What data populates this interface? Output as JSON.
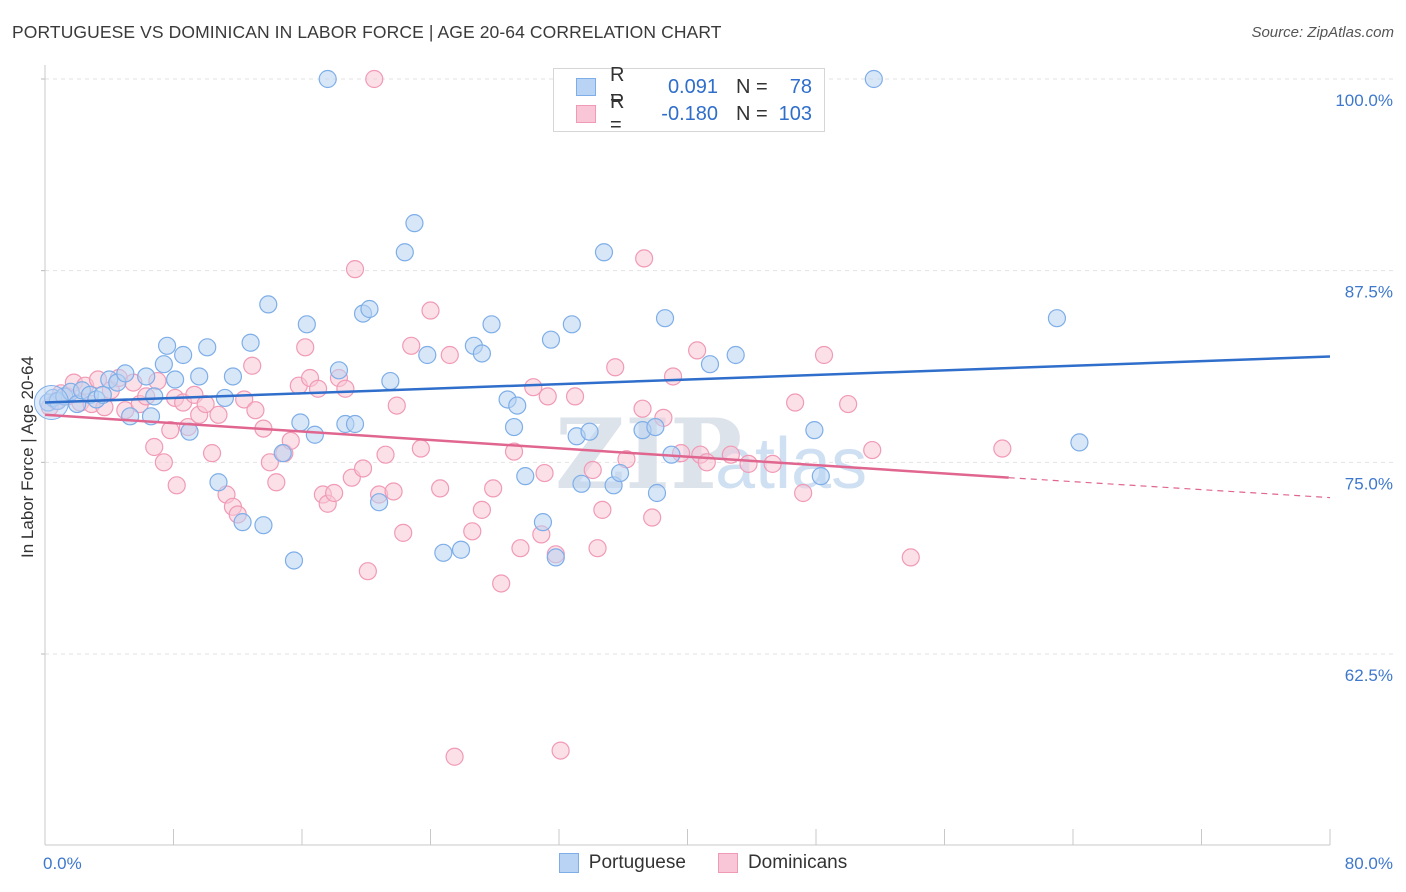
{
  "header": {
    "title": "PORTUGUESE VS DOMINICAN IN LABOR FORCE | AGE 20-64 CORRELATION CHART",
    "source": "Source: ZipAtlas.com"
  },
  "legend": {
    "r_label": "R =",
    "n_label": "N =",
    "entries": [
      {
        "name": "Portuguese",
        "r": "0.091",
        "n": "78",
        "color": "#7eaee8",
        "fill": "#b8d3f3",
        "line": "#2f6ecb"
      },
      {
        "name": "Dominicans",
        "r": "-0.180",
        "n": "103",
        "color": "#f19ab6",
        "fill": "#f8c6d6",
        "line": "#e0668f"
      }
    ]
  },
  "watermark": {
    "zip": "ZIP",
    "atlas": "atlas"
  },
  "chart_data": {
    "type": "scatter",
    "title": "PORTUGUESE VS DOMINICAN IN LABOR FORCE | AGE 20-64 CORRELATION CHART",
    "xlabel": "",
    "ylabel": "In Labor Force | Age 20-64",
    "xlim": [
      0,
      80
    ],
    "ylim": [
      52.5,
      102
    ],
    "x_tick_labels": [
      "0.0%",
      "80.0%"
    ],
    "y_ticks": [
      62.5,
      75.0,
      87.5,
      100.0
    ],
    "y_tick_labels": [
      "62.5%",
      "75.0%",
      "87.5%",
      "100.0%"
    ],
    "grid": true,
    "legend_position": "top-center",
    "series": [
      {
        "name": "Portuguese",
        "color": "#7eaee8",
        "trend": {
          "x": [
            0,
            80
          ],
          "y": [
            78.9,
            81.9
          ]
        },
        "points": [
          [
            0.2,
            78.9
          ],
          [
            0.5,
            79.2
          ],
          [
            0.8,
            79.0
          ],
          [
            1.2,
            79.3
          ],
          [
            1.6,
            79.6
          ],
          [
            2.0,
            78.8
          ],
          [
            2.3,
            79.7
          ],
          [
            2.8,
            79.4
          ],
          [
            3.2,
            79.1
          ],
          [
            3.6,
            79.4
          ],
          [
            4.0,
            80.4
          ],
          [
            4.5,
            80.2
          ],
          [
            5.0,
            80.8
          ],
          [
            5.3,
            78.0
          ],
          [
            6.3,
            80.6
          ],
          [
            6.6,
            78.0
          ],
          [
            6.8,
            79.3
          ],
          [
            7.4,
            81.4
          ],
          [
            7.6,
            82.6
          ],
          [
            8.1,
            80.4
          ],
          [
            8.6,
            82.0
          ],
          [
            9.0,
            77.0
          ],
          [
            9.6,
            80.6
          ],
          [
            10.1,
            82.5
          ],
          [
            10.8,
            73.7
          ],
          [
            11.2,
            79.2
          ],
          [
            11.7,
            80.6
          ],
          [
            12.3,
            71.1
          ],
          [
            12.8,
            82.8
          ],
          [
            13.6,
            70.9
          ],
          [
            13.9,
            85.3
          ],
          [
            14.8,
            75.6
          ],
          [
            15.5,
            68.6
          ],
          [
            15.9,
            77.6
          ],
          [
            16.3,
            84.0
          ],
          [
            16.8,
            76.8
          ],
          [
            17.6,
            100.0
          ],
          [
            18.3,
            81.0
          ],
          [
            18.7,
            77.5
          ],
          [
            19.3,
            77.5
          ],
          [
            19.8,
            84.7
          ],
          [
            20.2,
            85.0
          ],
          [
            20.8,
            72.4
          ],
          [
            21.5,
            80.3
          ],
          [
            22.4,
            88.7
          ],
          [
            23.0,
            90.6
          ],
          [
            23.8,
            82.0
          ],
          [
            24.8,
            69.1
          ],
          [
            25.9,
            69.3
          ],
          [
            26.7,
            82.6
          ],
          [
            27.2,
            82.1
          ],
          [
            27.8,
            84.0
          ],
          [
            28.8,
            79.1
          ],
          [
            29.2,
            77.3
          ],
          [
            29.4,
            78.7
          ],
          [
            29.9,
            74.1
          ],
          [
            31.0,
            71.1
          ],
          [
            31.5,
            83.0
          ],
          [
            31.8,
            68.8
          ],
          [
            32.8,
            84.0
          ],
          [
            33.1,
            76.7
          ],
          [
            33.4,
            73.6
          ],
          [
            33.9,
            77.0
          ],
          [
            34.8,
            88.7
          ],
          [
            35.4,
            73.5
          ],
          [
            35.8,
            74.3
          ],
          [
            37.2,
            77.1
          ],
          [
            38.0,
            77.3
          ],
          [
            38.1,
            73.0
          ],
          [
            38.6,
            84.4
          ],
          [
            39.0,
            75.5
          ],
          [
            41.4,
            81.4
          ],
          [
            43.0,
            82.0
          ],
          [
            46.0,
            100.0
          ],
          [
            47.9,
            77.1
          ],
          [
            48.3,
            74.1
          ],
          [
            51.6,
            100.0
          ],
          [
            63.0,
            84.4
          ],
          [
            64.4,
            76.3
          ]
        ]
      },
      {
        "name": "Dominicans",
        "color": "#f19ab6",
        "trend": {
          "x": [
            0,
            60
          ],
          "y": [
            78.1,
            74.0
          ]
        },
        "trend_dashed": {
          "x": [
            60,
            80
          ],
          "y": [
            74.0,
            72.7
          ]
        },
        "points": [
          [
            0.3,
            78.6
          ],
          [
            0.7,
            79.0
          ],
          [
            1.0,
            79.5
          ],
          [
            1.4,
            79.3
          ],
          [
            1.8,
            80.2
          ],
          [
            2.2,
            78.9
          ],
          [
            2.5,
            80.0
          ],
          [
            2.9,
            78.8
          ],
          [
            3.3,
            80.4
          ],
          [
            3.7,
            78.6
          ],
          [
            4.1,
            79.7
          ],
          [
            4.6,
            80.5
          ],
          [
            5.0,
            78.4
          ],
          [
            5.5,
            80.2
          ],
          [
            5.9,
            78.8
          ],
          [
            6.3,
            79.3
          ],
          [
            6.8,
            76.0
          ],
          [
            7.0,
            80.3
          ],
          [
            7.4,
            75.0
          ],
          [
            7.8,
            77.1
          ],
          [
            8.1,
            79.2
          ],
          [
            8.2,
            73.5
          ],
          [
            8.6,
            78.9
          ],
          [
            8.9,
            77.3
          ],
          [
            9.3,
            79.4
          ],
          [
            9.6,
            78.1
          ],
          [
            10.0,
            78.8
          ],
          [
            10.4,
            75.6
          ],
          [
            10.8,
            78.1
          ],
          [
            11.3,
            72.9
          ],
          [
            11.7,
            72.1
          ],
          [
            12.0,
            71.6
          ],
          [
            12.4,
            79.1
          ],
          [
            12.9,
            81.3
          ],
          [
            13.1,
            78.4
          ],
          [
            13.6,
            77.2
          ],
          [
            14.0,
            75.0
          ],
          [
            14.4,
            73.7
          ],
          [
            14.9,
            75.6
          ],
          [
            15.3,
            76.4
          ],
          [
            15.8,
            80.0
          ],
          [
            16.2,
            82.5
          ],
          [
            16.5,
            80.5
          ],
          [
            17.0,
            79.8
          ],
          [
            17.3,
            72.9
          ],
          [
            17.6,
            72.3
          ],
          [
            18.0,
            73.0
          ],
          [
            18.3,
            80.5
          ],
          [
            18.7,
            79.8
          ],
          [
            19.1,
            74.0
          ],
          [
            19.3,
            87.6
          ],
          [
            19.8,
            74.6
          ],
          [
            20.1,
            67.9
          ],
          [
            20.8,
            72.9
          ],
          [
            21.2,
            75.5
          ],
          [
            21.7,
            73.1
          ],
          [
            21.9,
            78.7
          ],
          [
            22.3,
            70.4
          ],
          [
            22.8,
            82.6
          ],
          [
            23.4,
            75.9
          ],
          [
            24.0,
            84.9
          ],
          [
            24.6,
            73.3
          ],
          [
            25.2,
            82.0
          ],
          [
            26.6,
            70.5
          ],
          [
            27.2,
            71.9
          ],
          [
            27.9,
            73.3
          ],
          [
            28.4,
            67.1
          ],
          [
            29.2,
            75.7
          ],
          [
            29.6,
            69.4
          ],
          [
            30.4,
            79.9
          ],
          [
            30.9,
            70.3
          ],
          [
            31.1,
            74.3
          ],
          [
            31.3,
            79.3
          ],
          [
            31.8,
            69.0
          ],
          [
            32.1,
            56.2
          ],
          [
            33.0,
            79.3
          ],
          [
            34.1,
            74.5
          ],
          [
            34.4,
            69.4
          ],
          [
            34.7,
            71.9
          ],
          [
            35.5,
            81.2
          ],
          [
            36.2,
            75.2
          ],
          [
            37.2,
            78.5
          ],
          [
            37.3,
            88.3
          ],
          [
            37.8,
            71.4
          ],
          [
            38.5,
            77.9
          ],
          [
            39.1,
            80.6
          ],
          [
            39.6,
            75.6
          ],
          [
            40.6,
            82.3
          ],
          [
            40.8,
            75.5
          ],
          [
            41.2,
            75.0
          ],
          [
            42.7,
            75.5
          ],
          [
            43.8,
            74.9
          ],
          [
            45.3,
            74.9
          ],
          [
            46.7,
            78.9
          ],
          [
            47.2,
            73.0
          ],
          [
            48.5,
            82.0
          ],
          [
            50.0,
            78.8
          ],
          [
            51.5,
            75.8
          ],
          [
            53.9,
            68.8
          ],
          [
            59.6,
            75.9
          ],
          [
            20.5,
            100.0
          ],
          [
            25.5,
            55.8
          ]
        ]
      }
    ]
  }
}
